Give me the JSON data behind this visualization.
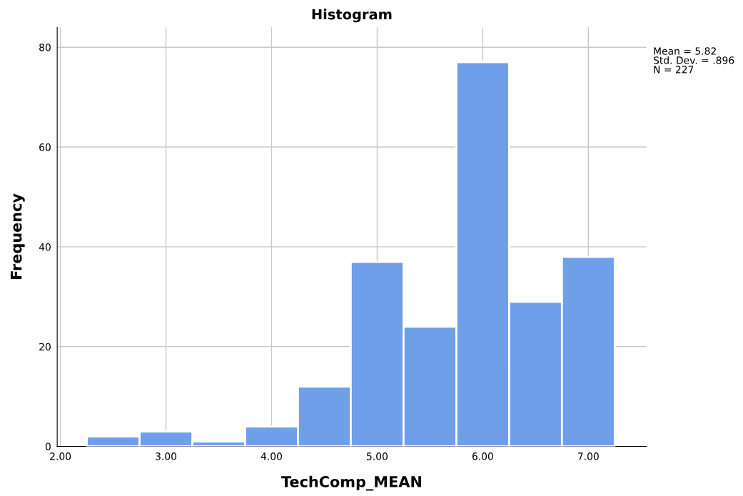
{
  "chart_data": {
    "type": "histogram",
    "title": "Histogram",
    "xlabel": "TechComp_MEAN",
    "ylabel": "Frequency",
    "bins": [
      2.25,
      2.75,
      3.25,
      3.75,
      4.25,
      4.75,
      5.25,
      5.75,
      6.25,
      6.75,
      7.25
    ],
    "values": [
      2,
      3,
      1,
      4,
      12,
      37,
      24,
      77,
      29,
      38
    ],
    "color": "#6f9fe9",
    "xlim": [
      1.97,
      7.55
    ],
    "xticks": [
      {
        "value": 2,
        "label": "2.00"
      },
      {
        "value": 3,
        "label": "3.00"
      },
      {
        "value": 4,
        "label": "4.00"
      },
      {
        "value": 5,
        "label": "5.00"
      },
      {
        "value": 6,
        "label": "6.00"
      },
      {
        "value": 7,
        "label": "7.00"
      }
    ],
    "ylim": [
      0,
      84
    ],
    "yticks": [
      0,
      20,
      40,
      60,
      80
    ],
    "grid": true,
    "legend": false,
    "annotations": [
      "Mean = 5.82\nStd. Dev. = .896\nN = 227"
    ]
  }
}
